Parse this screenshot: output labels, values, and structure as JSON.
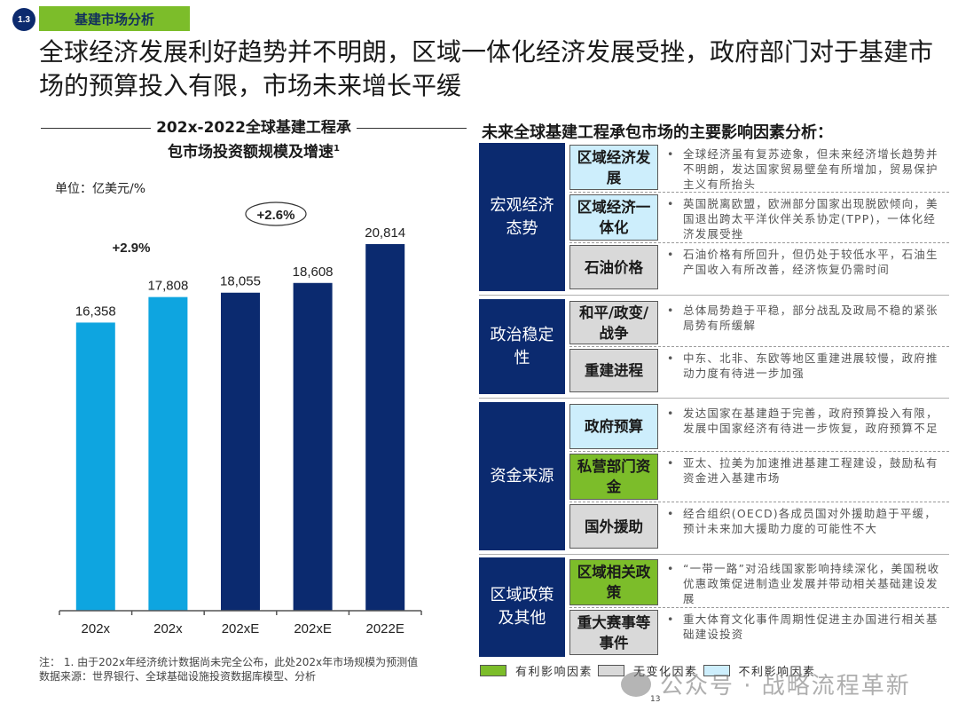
{
  "header": {
    "section_number": "1.3",
    "section_label": "基建市场分析",
    "headline": "全球经济发展利好趋势并不明朗，区域一体化经济发展受挫，政府部门对于基建市场的预算投入有限，市场未来增长平缓"
  },
  "chart_data": {
    "type": "bar",
    "title_line1": "202x-2022全球基建工程承",
    "title_line2": "包市场投资额规模及增速",
    "title_footnote_mark": "1",
    "unit_label": "单位：亿美元/%",
    "categories": [
      "202x",
      "202x",
      "202xE",
      "202xE",
      "2022E"
    ],
    "values": [
      16358,
      17808,
      18055,
      18608,
      20814
    ],
    "value_labels": [
      "16,358",
      "17,808",
      "18,055",
      "18,608",
      "20,814"
    ],
    "series_type": [
      "actual",
      "actual",
      "estimate",
      "estimate",
      "estimate"
    ],
    "colors": {
      "actual": "#0ea5e0",
      "estimate": "#0b2a6f"
    },
    "ylim": [
      0,
      21500
    ],
    "annotations": [
      {
        "text": "+2.9%",
        "style": "plain",
        "near": "first-two-bars"
      },
      {
        "text": "+2.6%",
        "style": "ellipse",
        "near": "estimate-bars"
      }
    ],
    "xlabel": "",
    "ylabel": "",
    "grid": false
  },
  "notes": {
    "line1": "注：  1. 由于202x年经济统计数据尚未完全公布，此处202x年市场规模为预测值",
    "line2": "数据来源：世界银行、全球基础设施投资数据库模型、分析"
  },
  "factors_panel": {
    "title": "未来全球基建工程承包市场的主要影响因素分析：",
    "groups": [
      {
        "category": "宏观经济态势",
        "rows": [
          {
            "factor": "区域经济发展",
            "impact": "negative",
            "text": "全球经济虽有复苏迹象，但未来经济增长趋势并不明朗，发达国家贸易壁垒有所增加，贸易保护主义有所抬头"
          },
          {
            "factor": "区域经济一体化",
            "impact": "negative",
            "text": "英国脱离欧盟，欧洲部分国家出现脱欧倾向，美国退出跨太平洋伙伴关系协定(TPP)，一体化经济发展受挫"
          },
          {
            "factor": "石油价格",
            "impact": "neutral",
            "text": "石油价格有所回升，但仍处于较低水平，石油生产国收入有所改善，经济恢复仍需时间"
          }
        ]
      },
      {
        "category": "政治稳定性",
        "rows": [
          {
            "factor": "和平/政变/战争",
            "impact": "neutral",
            "text": "总体局势趋于平稳，部分战乱及政局不稳的紧张局势有所缓解"
          },
          {
            "factor": "重建进程",
            "impact": "neutral",
            "text": "中东、北非、东欧等地区重建进展较慢，政府推动力度有待进一步加强"
          }
        ]
      },
      {
        "category": "资金来源",
        "rows": [
          {
            "factor": "政府预算",
            "impact": "negative",
            "text": "发达国家在基建趋于完善，政府预算投入有限，发展中国家经济有待进一步恢复，政府预算不足"
          },
          {
            "factor": "私营部门资金",
            "impact": "positive",
            "text": "亚太、拉美为加速推进基建工程建设，鼓励私有资金进入基建市场"
          },
          {
            "factor": "国外援助",
            "impact": "neutral",
            "text": "经合组织(OECD)各成员国对外援助趋于平缓，预计未来加大援助力度的可能性不大"
          }
        ]
      },
      {
        "category": "区域政策及其他",
        "rows": [
          {
            "factor": "区域相关政策",
            "impact": "positive",
            "text": "“一带一路”对沿线国家影响持续深化，美国税收优惠政策促进制造业发展并带动相关基础建设发展"
          },
          {
            "factor": "重大赛事等事件",
            "impact": "neutral",
            "text": "重大体育文化事件周期性促进主办国进行相关基础建设投资"
          }
        ]
      }
    ],
    "bullet": "•",
    "legend": [
      {
        "label": "有利影响因素",
        "color": "#7cbd2a"
      },
      {
        "label": "无变化因素",
        "color": "#d9d9d9"
      },
      {
        "label": "不利影响因素",
        "color": "#cdeefc"
      }
    ]
  },
  "watermark": "公众号 · 战略流程革新",
  "page_number": "13"
}
